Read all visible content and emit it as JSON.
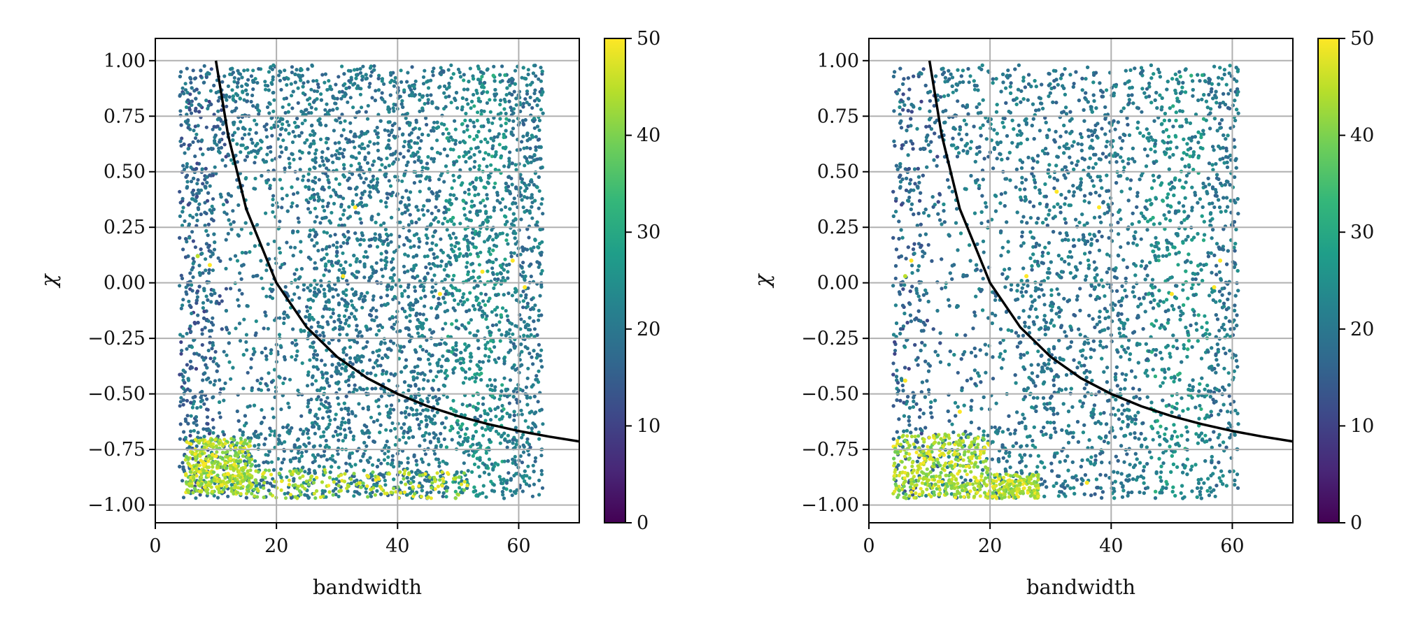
{
  "colormap": {
    "name": "viridis",
    "stops": [
      "#440154",
      "#482878",
      "#3e4989",
      "#31688e",
      "#26828e",
      "#1f9e89",
      "#35b779",
      "#6ece58",
      "#b5de2b",
      "#fde725"
    ]
  },
  "chart_data": [
    {
      "type": "scatter",
      "title": "",
      "xlabel": "bandwidth",
      "ylabel": "χ",
      "xlim": [
        0,
        70
      ],
      "ylim": [
        -1.08,
        1.1
      ],
      "xticks": [
        0,
        20,
        40,
        60
      ],
      "xtick_labels": [
        "0",
        "20",
        "40",
        "60"
      ],
      "yticks": [
        1.0,
        0.75,
        0.5,
        0.25,
        0.0,
        -0.25,
        -0.5,
        -0.75,
        -1.0
      ],
      "ytick_labels": [
        "1.00",
        "0.75",
        "0.50",
        "0.25",
        "0.00",
        "−0.25",
        "−0.50",
        "−0.75",
        "−1.00"
      ],
      "grid": true,
      "colorbar": {
        "min": 0,
        "max": 50,
        "ticks": [
          0,
          10,
          20,
          30,
          40,
          50
        ],
        "tick_labels": [
          "0",
          "10",
          "20",
          "30",
          "40",
          "50"
        ]
      },
      "scatter_region": {
        "x_range": [
          4,
          64
        ],
        "y_range": [
          -0.97,
          0.98
        ],
        "typical_color_value": 20
      },
      "notable_points": [
        {
          "x": 8,
          "y": -0.82,
          "c": 50
        },
        {
          "x": 10,
          "y": -0.78,
          "c": 50
        },
        {
          "x": 12,
          "y": -0.86,
          "c": 50
        },
        {
          "x": 7,
          "y": 0.12,
          "c": 45
        },
        {
          "x": 9,
          "y": 0.08,
          "c": 50
        },
        {
          "x": 33,
          "y": 0.34,
          "c": 50
        },
        {
          "x": 31,
          "y": 0.03,
          "c": 50
        },
        {
          "x": 47,
          "y": -0.05,
          "c": 50
        },
        {
          "x": 54,
          "y": 0.05,
          "c": 50
        },
        {
          "x": 59,
          "y": 0.1,
          "c": 50
        },
        {
          "x": 61,
          "y": -0.02,
          "c": 50
        }
      ],
      "bright_cluster": {
        "x_range": [
          5,
          16
        ],
        "y_range": [
          -0.95,
          -0.7
        ],
        "c": 50
      },
      "bright_band": {
        "x_range": [
          16,
          52
        ],
        "y_range": [
          -0.97,
          -0.84
        ],
        "c": 50
      },
      "curve": {
        "label": "",
        "x": [
          10,
          12,
          15,
          20,
          25,
          30,
          35,
          40,
          45,
          50,
          55,
          60,
          65,
          70
        ],
        "y": [
          1.0,
          0.667,
          0.333,
          0.0,
          -0.2,
          -0.333,
          -0.429,
          -0.5,
          -0.556,
          -0.6,
          -0.636,
          -0.667,
          -0.692,
          -0.714
        ]
      }
    },
    {
      "type": "scatter",
      "title": "",
      "xlabel": "bandwidth",
      "ylabel": "χ",
      "xlim": [
        0,
        70
      ],
      "ylim": [
        -1.08,
        1.1
      ],
      "xticks": [
        0,
        20,
        40,
        60
      ],
      "xtick_labels": [
        "0",
        "20",
        "40",
        "60"
      ],
      "yticks": [
        1.0,
        0.75,
        0.5,
        0.25,
        0.0,
        -0.25,
        -0.5,
        -0.75,
        -1.0
      ],
      "ytick_labels": [
        "1.00",
        "0.75",
        "0.50",
        "0.25",
        "0.00",
        "−0.25",
        "−0.50",
        "−0.75",
        "−1.00"
      ],
      "grid": true,
      "colorbar": {
        "min": 0,
        "max": 50,
        "ticks": [
          0,
          10,
          20,
          30,
          40,
          50
        ],
        "tick_labels": [
          "0",
          "10",
          "20",
          "30",
          "40",
          "50"
        ]
      },
      "scatter_region": {
        "x_range": [
          4,
          61
        ],
        "y_range": [
          -0.97,
          0.98
        ],
        "typical_color_value": 20
      },
      "notable_points": [
        {
          "x": 7,
          "y": 0.1,
          "c": 50
        },
        {
          "x": 6,
          "y": 0.03,
          "c": 45
        },
        {
          "x": 31,
          "y": 0.41,
          "c": 50
        },
        {
          "x": 38,
          "y": 0.34,
          "c": 50
        },
        {
          "x": 26,
          "y": 0.03,
          "c": 50
        },
        {
          "x": 50,
          "y": -0.05,
          "c": 50
        },
        {
          "x": 57,
          "y": -0.02,
          "c": 50
        },
        {
          "x": 58,
          "y": 0.1,
          "c": 50
        },
        {
          "x": 6,
          "y": -0.44,
          "c": 50
        },
        {
          "x": 15,
          "y": -0.58,
          "c": 50
        },
        {
          "x": 36,
          "y": -0.9,
          "c": 50
        }
      ],
      "bright_cluster": {
        "x_range": [
          4,
          20
        ],
        "y_range": [
          -0.97,
          -0.68
        ],
        "c": 50
      },
      "bright_band": {
        "x_range": [
          20,
          28
        ],
        "y_range": [
          -0.97,
          -0.86
        ],
        "c": 50
      },
      "curve": {
        "label": "",
        "x": [
          10,
          12,
          15,
          20,
          25,
          30,
          35,
          40,
          45,
          50,
          55,
          60,
          65,
          70
        ],
        "y": [
          1.0,
          0.667,
          0.333,
          0.0,
          -0.2,
          -0.333,
          -0.429,
          -0.5,
          -0.556,
          -0.6,
          -0.636,
          -0.667,
          -0.692,
          -0.714
        ]
      }
    }
  ]
}
